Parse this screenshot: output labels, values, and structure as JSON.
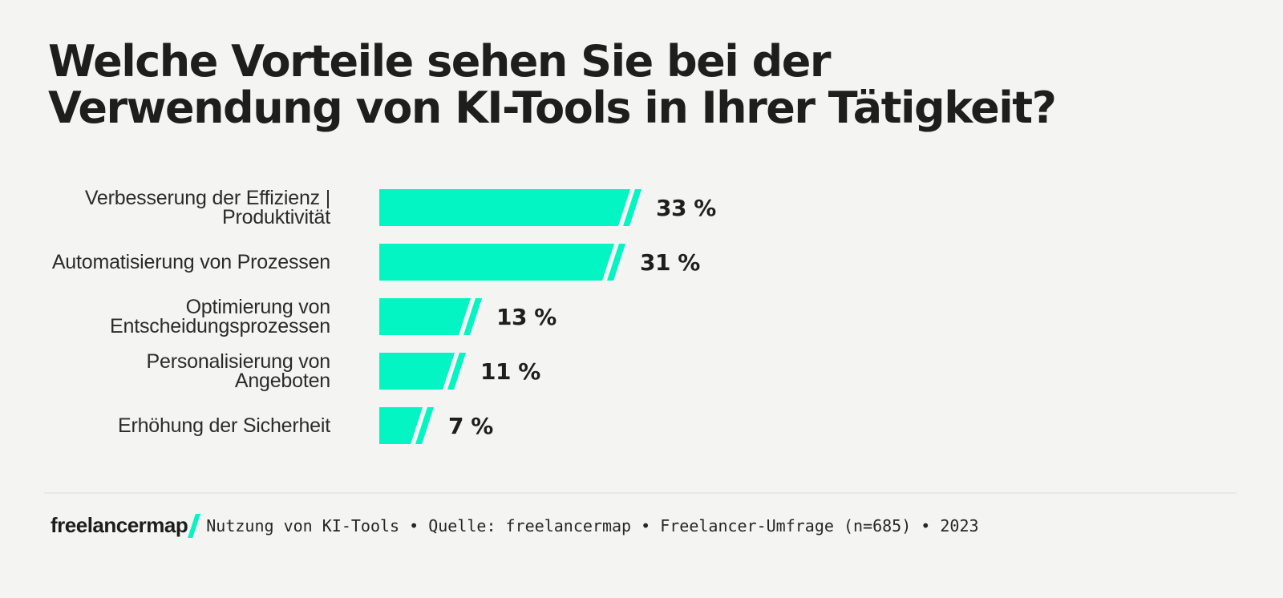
{
  "title": {
    "line1": "Welche Vorteile sehen Sie bei der",
    "line2": "Verwendung von KI-Tools in Ihrer Tätigkeit?"
  },
  "chart_data": {
    "type": "bar",
    "orientation": "horizontal",
    "categories": [
      "Verbesserung der Effizienz |\nProduktivität",
      "Automatisierung von Prozessen",
      "Optimierung von\nEntscheidungsprozessen",
      "Personalisierung von\nAngeboten",
      "Erhöhung der Sicherheit"
    ],
    "values": [
      33,
      31,
      13,
      11,
      7
    ],
    "value_labels": [
      "33 %",
      "31 %",
      "13 %",
      "11 %",
      "7 %"
    ],
    "unit": "%",
    "xlim": [
      0,
      33
    ],
    "grid": false,
    "legend": "none",
    "bar_color": "#02f5c3"
  },
  "footer": {
    "logo_text": "freelancermap",
    "source_text": "Nutzung von KI-Tools • Quelle: freelancermap • Freelancer-Umfrage (n=685) • 2023"
  },
  "colors": {
    "background": "#f4f4f2",
    "accent": "#02f5c3",
    "title_text": "#1e1e1c",
    "label_text": "#2b2b29",
    "divider": "#e8e8e6"
  }
}
